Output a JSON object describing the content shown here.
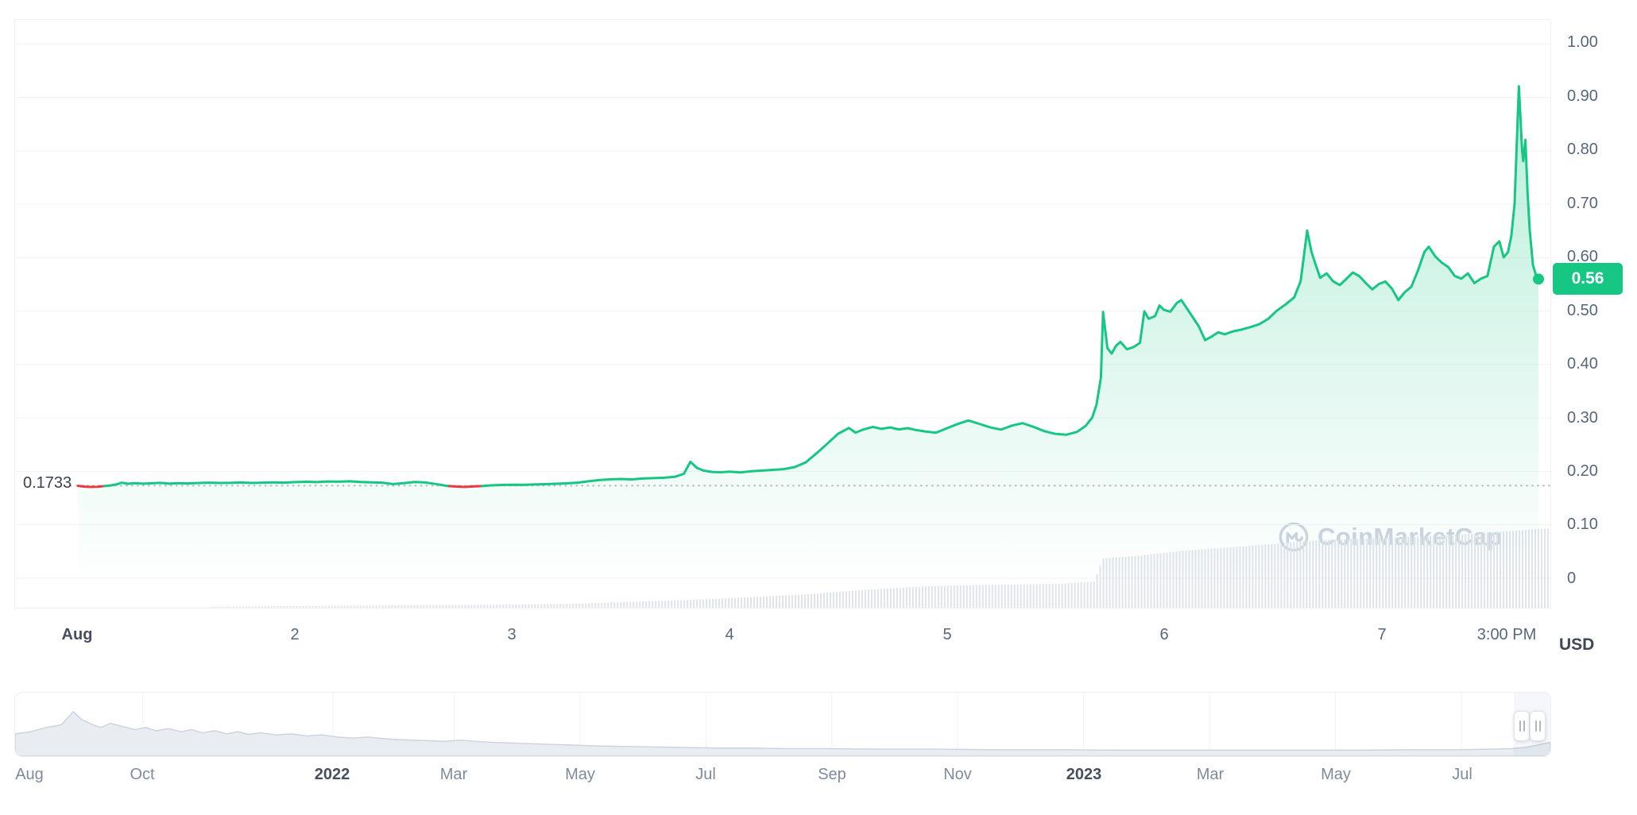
{
  "watermark": {
    "text": "CoinMarketCap"
  },
  "colors": {
    "line_green": "#16c784",
    "line_red": "#ea3943",
    "badge_bg": "#16c784",
    "badge_text": "#ffffff",
    "axis_text": "#58667e",
    "axis_text_strong": "#464f60",
    "grid": "#f2f3f7",
    "border": "#eef0f4",
    "ref_line": "#b3bac9",
    "volume_bar": "#dfe3ea",
    "brush_fill": "#e9edf2",
    "brush_stroke": "#ccd3df",
    "brush_grid": "#f0f2f6",
    "watermark": "#ccd3e0"
  },
  "chart_data": {
    "type": "line",
    "title": "",
    "unit": "USD",
    "x_domain": [
      0.71,
      7.78
    ],
    "y_domain": [
      -0.055,
      1.045
    ],
    "y_ticks": [
      {
        "label": "1.00",
        "value": 1.0
      },
      {
        "label": "0.90",
        "value": 0.9
      },
      {
        "label": "0.80",
        "value": 0.8
      },
      {
        "label": "0.70",
        "value": 0.7
      },
      {
        "label": "0.60",
        "value": 0.6
      },
      {
        "label": "0.50",
        "value": 0.5
      },
      {
        "label": "0.40",
        "value": 0.4
      },
      {
        "label": "0.30",
        "value": 0.3
      },
      {
        "label": "0.20",
        "value": 0.2
      },
      {
        "label": "0.10",
        "value": 0.1
      },
      {
        "label": "0",
        "value": 0.0
      }
    ],
    "x_ticks": [
      {
        "label": "Aug",
        "t": 1.0,
        "strong": true
      },
      {
        "label": "2",
        "t": 2.0
      },
      {
        "label": "3",
        "t": 3.0
      },
      {
        "label": "4",
        "t": 4.0
      },
      {
        "label": "5",
        "t": 5.0
      },
      {
        "label": "6",
        "t": 6.0
      },
      {
        "label": "7",
        "t": 7.0
      },
      {
        "label": "3:00 PM",
        "t": 7.575
      }
    ],
    "reference": {
      "label": "0.1733",
      "value": 0.1733
    },
    "last": {
      "label": "0.56",
      "value": 0.56,
      "t": 7.725
    },
    "price_series": [
      [
        1.0,
        0.173
      ],
      [
        1.03,
        0.1715
      ],
      [
        1.06,
        0.171
      ],
      [
        1.09,
        0.1712
      ],
      [
        1.12,
        0.1726
      ],
      [
        1.15,
        0.1738
      ],
      [
        1.18,
        0.176
      ],
      [
        1.2,
        0.179
      ],
      [
        1.23,
        0.1768
      ],
      [
        1.26,
        0.178
      ],
      [
        1.3,
        0.1772
      ],
      [
        1.34,
        0.1778
      ],
      [
        1.38,
        0.1785
      ],
      [
        1.42,
        0.1772
      ],
      [
        1.46,
        0.178
      ],
      [
        1.5,
        0.1774
      ],
      [
        1.55,
        0.1782
      ],
      [
        1.6,
        0.179
      ],
      [
        1.65,
        0.1783
      ],
      [
        1.7,
        0.1787
      ],
      [
        1.75,
        0.1792
      ],
      [
        1.8,
        0.1784
      ],
      [
        1.85,
        0.179
      ],
      [
        1.9,
        0.1796
      ],
      [
        1.95,
        0.179
      ],
      [
        2.0,
        0.18
      ],
      [
        2.05,
        0.1806
      ],
      [
        2.1,
        0.18
      ],
      [
        2.15,
        0.1812
      ],
      [
        2.2,
        0.1808
      ],
      [
        2.25,
        0.1816
      ],
      [
        2.3,
        0.1802
      ],
      [
        2.35,
        0.1796
      ],
      [
        2.4,
        0.179
      ],
      [
        2.45,
        0.1762
      ],
      [
        2.5,
        0.178
      ],
      [
        2.55,
        0.1803
      ],
      [
        2.6,
        0.1792
      ],
      [
        2.65,
        0.1762
      ],
      [
        2.7,
        0.1729
      ],
      [
        2.74,
        0.1716
      ],
      [
        2.78,
        0.171
      ],
      [
        2.82,
        0.1718
      ],
      [
        2.86,
        0.1726
      ],
      [
        2.9,
        0.1739
      ],
      [
        2.95,
        0.1746
      ],
      [
        3.0,
        0.1751
      ],
      [
        3.05,
        0.1748
      ],
      [
        3.1,
        0.1756
      ],
      [
        3.15,
        0.1761
      ],
      [
        3.2,
        0.1768
      ],
      [
        3.25,
        0.1776
      ],
      [
        3.3,
        0.179
      ],
      [
        3.35,
        0.1816
      ],
      [
        3.4,
        0.1838
      ],
      [
        3.45,
        0.1852
      ],
      [
        3.5,
        0.1858
      ],
      [
        3.55,
        0.185
      ],
      [
        3.6,
        0.1868
      ],
      [
        3.65,
        0.1876
      ],
      [
        3.7,
        0.1883
      ],
      [
        3.75,
        0.19
      ],
      [
        3.79,
        0.1956
      ],
      [
        3.82,
        0.218
      ],
      [
        3.85,
        0.2066
      ],
      [
        3.88,
        0.2016
      ],
      [
        3.92,
        0.199
      ],
      [
        3.96,
        0.1983
      ],
      [
        4.0,
        0.1996
      ],
      [
        4.05,
        0.1981
      ],
      [
        4.1,
        0.2003
      ],
      [
        4.15,
        0.2016
      ],
      [
        4.2,
        0.2029
      ],
      [
        4.25,
        0.2043
      ],
      [
        4.3,
        0.2081
      ],
      [
        4.35,
        0.2166
      ],
      [
        4.4,
        0.2336
      ],
      [
        4.45,
        0.2519
      ],
      [
        4.5,
        0.2706
      ],
      [
        4.55,
        0.2812
      ],
      [
        4.58,
        0.2726
      ],
      [
        4.62,
        0.2789
      ],
      [
        4.66,
        0.2833
      ],
      [
        4.7,
        0.2796
      ],
      [
        4.74,
        0.2823
      ],
      [
        4.78,
        0.2786
      ],
      [
        4.82,
        0.2809
      ],
      [
        4.86,
        0.2773
      ],
      [
        4.9,
        0.2749
      ],
      [
        4.95,
        0.2723
      ],
      [
        5.0,
        0.2806
      ],
      [
        5.05,
        0.2886
      ],
      [
        5.1,
        0.2953
      ],
      [
        5.15,
        0.2889
      ],
      [
        5.2,
        0.2826
      ],
      [
        5.25,
        0.2783
      ],
      [
        5.3,
        0.2856
      ],
      [
        5.35,
        0.2903
      ],
      [
        5.4,
        0.2833
      ],
      [
        5.45,
        0.2753
      ],
      [
        5.5,
        0.2703
      ],
      [
        5.55,
        0.2686
      ],
      [
        5.6,
        0.2739
      ],
      [
        5.64,
        0.2853
      ],
      [
        5.67,
        0.3006
      ],
      [
        5.69,
        0.3253
      ],
      [
        5.71,
        0.3756
      ],
      [
        5.72,
        0.4986
      ],
      [
        5.74,
        0.4306
      ],
      [
        5.76,
        0.4206
      ],
      [
        5.78,
        0.4353
      ],
      [
        5.8,
        0.4423
      ],
      [
        5.83,
        0.4286
      ],
      [
        5.86,
        0.4326
      ],
      [
        5.89,
        0.4406
      ],
      [
        5.91,
        0.4996
      ],
      [
        5.93,
        0.4856
      ],
      [
        5.96,
        0.4906
      ],
      [
        5.98,
        0.5106
      ],
      [
        6.0,
        0.5023
      ],
      [
        6.03,
        0.4989
      ],
      [
        6.06,
        0.5153
      ],
      [
        6.08,
        0.5206
      ],
      [
        6.1,
        0.5089
      ],
      [
        6.13,
        0.4906
      ],
      [
        6.16,
        0.4723
      ],
      [
        6.19,
        0.4456
      ],
      [
        6.22,
        0.4523
      ],
      [
        6.25,
        0.4603
      ],
      [
        6.28,
        0.4566
      ],
      [
        6.32,
        0.4623
      ],
      [
        6.36,
        0.4656
      ],
      [
        6.4,
        0.4703
      ],
      [
        6.44,
        0.4756
      ],
      [
        6.48,
        0.4853
      ],
      [
        6.52,
        0.5006
      ],
      [
        6.56,
        0.5123
      ],
      [
        6.6,
        0.5256
      ],
      [
        6.63,
        0.5556
      ],
      [
        6.66,
        0.6506
      ],
      [
        6.68,
        0.6106
      ],
      [
        6.7,
        0.5856
      ],
      [
        6.72,
        0.5623
      ],
      [
        6.75,
        0.5706
      ],
      [
        6.78,
        0.5556
      ],
      [
        6.81,
        0.5486
      ],
      [
        6.84,
        0.5603
      ],
      [
        6.87,
        0.5723
      ],
      [
        6.9,
        0.5656
      ],
      [
        6.93,
        0.5523
      ],
      [
        6.96,
        0.5406
      ],
      [
        6.99,
        0.5506
      ],
      [
        7.02,
        0.5553
      ],
      [
        7.05,
        0.5423
      ],
      [
        7.08,
        0.5206
      ],
      [
        7.11,
        0.5356
      ],
      [
        7.14,
        0.5456
      ],
      [
        7.17,
        0.5756
      ],
      [
        7.2,
        0.6106
      ],
      [
        7.22,
        0.6206
      ],
      [
        7.25,
        0.6023
      ],
      [
        7.28,
        0.5906
      ],
      [
        7.31,
        0.5823
      ],
      [
        7.34,
        0.5656
      ],
      [
        7.37,
        0.5606
      ],
      [
        7.4,
        0.5706
      ],
      [
        7.43,
        0.5523
      ],
      [
        7.46,
        0.5606
      ],
      [
        7.49,
        0.5656
      ],
      [
        7.52,
        0.6206
      ],
      [
        7.545,
        0.6306
      ],
      [
        7.565,
        0.6006
      ],
      [
        7.585,
        0.6106
      ],
      [
        7.6,
        0.6406
      ],
      [
        7.615,
        0.7006
      ],
      [
        7.635,
        0.9206
      ],
      [
        7.65,
        0.8006
      ],
      [
        7.655,
        0.7806
      ],
      [
        7.665,
        0.8206
      ],
      [
        7.675,
        0.7206
      ],
      [
        7.685,
        0.6506
      ],
      [
        7.7,
        0.5856
      ],
      [
        7.715,
        0.5656
      ],
      [
        7.725,
        0.56
      ]
    ],
    "volume_series": [
      [
        1.0,
        0.004
      ],
      [
        1.5,
        0.01
      ],
      [
        2.0,
        0.02
      ],
      [
        2.5,
        0.03
      ],
      [
        3.0,
        0.04
      ],
      [
        3.3,
        0.05
      ],
      [
        3.6,
        0.08
      ],
      [
        3.82,
        0.1
      ],
      [
        4.0,
        0.12
      ],
      [
        4.3,
        0.16
      ],
      [
        4.6,
        0.22
      ],
      [
        4.9,
        0.27
      ],
      [
        5.2,
        0.29
      ],
      [
        5.5,
        0.3
      ],
      [
        5.68,
        0.33
      ],
      [
        5.72,
        0.62
      ],
      [
        5.9,
        0.66
      ],
      [
        6.1,
        0.72
      ],
      [
        6.4,
        0.78
      ],
      [
        6.7,
        0.85
      ],
      [
        7.0,
        0.88
      ],
      [
        7.2,
        0.9
      ],
      [
        7.4,
        0.93
      ],
      [
        7.6,
        0.97
      ],
      [
        7.77,
        1.0
      ]
    ],
    "brush": {
      "labels": [
        {
          "label": "Aug",
          "pct": 1.0
        },
        {
          "label": "Oct",
          "pct": 8.3
        },
        {
          "label": "2022",
          "pct": 20.7,
          "strong": true
        },
        {
          "label": "Mar",
          "pct": 28.6
        },
        {
          "label": "May",
          "pct": 36.8
        },
        {
          "label": "Jul",
          "pct": 45.0
        },
        {
          "label": "Sep",
          "pct": 53.2
        },
        {
          "label": "Nov",
          "pct": 61.4
        },
        {
          "label": "2023",
          "pct": 69.6,
          "strong": true
        },
        {
          "label": "Mar",
          "pct": 77.8
        },
        {
          "label": "May",
          "pct": 86.0
        },
        {
          "label": "Jul",
          "pct": 94.2
        }
      ],
      "series": [
        [
          0,
          0.38
        ],
        [
          1,
          0.42
        ],
        [
          2,
          0.5
        ],
        [
          3,
          0.55
        ],
        [
          3.8,
          0.8
        ],
        [
          4.3,
          0.66
        ],
        [
          5,
          0.56
        ],
        [
          5.6,
          0.5
        ],
        [
          6.2,
          0.58
        ],
        [
          7,
          0.52
        ],
        [
          7.8,
          0.46
        ],
        [
          8.5,
          0.5
        ],
        [
          9.2,
          0.44
        ],
        [
          10,
          0.48
        ],
        [
          10.8,
          0.42
        ],
        [
          11.5,
          0.46
        ],
        [
          12.2,
          0.4
        ],
        [
          13,
          0.44
        ],
        [
          13.8,
          0.38
        ],
        [
          14.5,
          0.42
        ],
        [
          15.2,
          0.37
        ],
        [
          16,
          0.4
        ],
        [
          17,
          0.36
        ],
        [
          18,
          0.38
        ],
        [
          19,
          0.34
        ],
        [
          20,
          0.36
        ],
        [
          21,
          0.32
        ],
        [
          22,
          0.3
        ],
        [
          23,
          0.32
        ],
        [
          24,
          0.29
        ],
        [
          25,
          0.27
        ],
        [
          26,
          0.26
        ],
        [
          27,
          0.25
        ],
        [
          28,
          0.24
        ],
        [
          29,
          0.26
        ],
        [
          30,
          0.24
        ],
        [
          31,
          0.22
        ],
        [
          32,
          0.21
        ],
        [
          33,
          0.2
        ],
        [
          34,
          0.19
        ],
        [
          35,
          0.18
        ],
        [
          36,
          0.17
        ],
        [
          37,
          0.16
        ],
        [
          38,
          0.15
        ],
        [
          40,
          0.14
        ],
        [
          42,
          0.13
        ],
        [
          44,
          0.12
        ],
        [
          46,
          0.11
        ],
        [
          48,
          0.11
        ],
        [
          50,
          0.1
        ],
        [
          53,
          0.1
        ],
        [
          56,
          0.09
        ],
        [
          60,
          0.09
        ],
        [
          64,
          0.08
        ],
        [
          68,
          0.08
        ],
        [
          72,
          0.07
        ],
        [
          76,
          0.07
        ],
        [
          80,
          0.07
        ],
        [
          84,
          0.07
        ],
        [
          88,
          0.07
        ],
        [
          91,
          0.08
        ],
        [
          94,
          0.08
        ],
        [
          96,
          0.09
        ],
        [
          97.5,
          0.1
        ],
        [
          98.5,
          0.13
        ],
        [
          99.2,
          0.17
        ],
        [
          100,
          0.22
        ]
      ],
      "selection_pct": [
        98.0,
        100.0
      ]
    }
  }
}
